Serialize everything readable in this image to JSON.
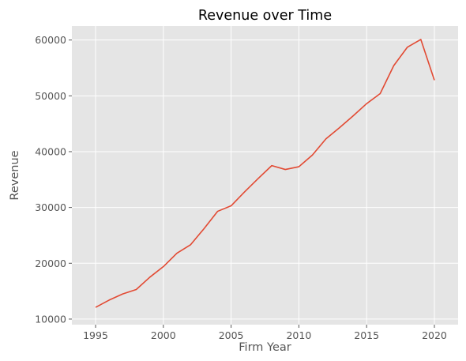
{
  "chart_data": {
    "type": "line",
    "title": "Revenue over Time",
    "xlabel": "Firm Year",
    "ylabel": "Revenue",
    "xlim": [
      1993.25,
      2021.75
    ],
    "ylim": [
      9000,
      62500
    ],
    "xticks": [
      1995,
      2000,
      2005,
      2010,
      2015,
      2020
    ],
    "xtick_labels": [
      "1995",
      "2000",
      "2005",
      "2010",
      "2015",
      "2020"
    ],
    "yticks": [
      10000,
      20000,
      30000,
      40000,
      50000,
      60000
    ],
    "ytick_labels": [
      "10000",
      "20000",
      "30000",
      "40000",
      "50000",
      "60000"
    ],
    "grid": true,
    "legend": false,
    "series": [
      {
        "color": "#E24A33",
        "x": [
          1995,
          1996,
          1997,
          1998,
          1999,
          2000,
          2001,
          2002,
          2003,
          2004,
          2005,
          2006,
          2007,
          2008,
          2009,
          2010,
          2011,
          2012,
          2013,
          2014,
          2015,
          2016,
          2017,
          2018,
          2019,
          2020
        ],
        "values": [
          12100,
          13400,
          14500,
          15300,
          17500,
          19400,
          21800,
          23300,
          26200,
          29300,
          30300,
          32800,
          35200,
          37500,
          36800,
          37300,
          39400,
          42300,
          44300,
          46400,
          48600,
          50400,
          55400,
          58700,
          60100,
          52800
        ]
      }
    ]
  },
  "colors": {
    "plot_background": "#E5E5E5",
    "grid": "#FFFFFF",
    "line": "#E24A33",
    "tick_text": "#555555"
  }
}
